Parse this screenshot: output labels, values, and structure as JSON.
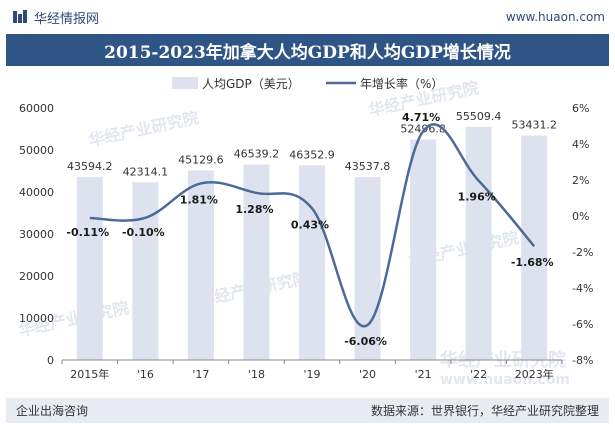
{
  "header": {
    "brand_name": "华经情报网",
    "site_url": "www.huaon.com"
  },
  "footer": {
    "left": "企业出海咨询",
    "right": "数据来源：世界银行，华经产业研究院整理"
  },
  "watermark": {
    "text": "华经产业研究院",
    "url": "www.huaon.com"
  },
  "colors": {
    "title_bg": "#2e5585",
    "bar": "#dde2ee",
    "line": "#4a6a9a"
  },
  "chart_data": {
    "type": "bar+line",
    "title": "2015-2023年加拿大人均GDP和人均GDP增长情况",
    "categories": [
      "2015年",
      "'16",
      "'17",
      "'18",
      "'19",
      "'20",
      "'21",
      "'22",
      "2023年"
    ],
    "series": [
      {
        "name": "人均GDP（美元）",
        "type": "bar",
        "axis": "left",
        "values": [
          43594.2,
          42314.1,
          45129.6,
          46539.2,
          46352.9,
          43537.8,
          52496.8,
          55509.4,
          53431.2
        ],
        "labels": [
          "43594.2",
          "42314.1",
          "45129.6",
          "46539.2",
          "46352.9",
          "43537.8",
          "52496.8",
          "55509.4",
          "53431.2"
        ]
      },
      {
        "name": "年增长率（%）",
        "type": "line",
        "axis": "right",
        "values": [
          -0.11,
          -0.1,
          1.81,
          1.28,
          0.43,
          -6.06,
          4.71,
          1.96,
          -1.68
        ],
        "labels": [
          "-0.11%",
          "-0.10%",
          "1.81%",
          "1.28%",
          "0.43%",
          "-6.06%",
          "4.71%",
          "1.96%",
          "-1.68%"
        ]
      }
    ],
    "y_left": {
      "min": 0,
      "max": 60000,
      "ticks": [
        "0",
        "10000",
        "20000",
        "30000",
        "40000",
        "50000",
        "60000"
      ]
    },
    "y_right": {
      "min": -8,
      "max": 6,
      "ticks": [
        "-8%",
        "-6%",
        "-4%",
        "-2%",
        "0%",
        "2%",
        "4%",
        "6%"
      ]
    },
    "legend_position": "top-center",
    "grid": false
  }
}
